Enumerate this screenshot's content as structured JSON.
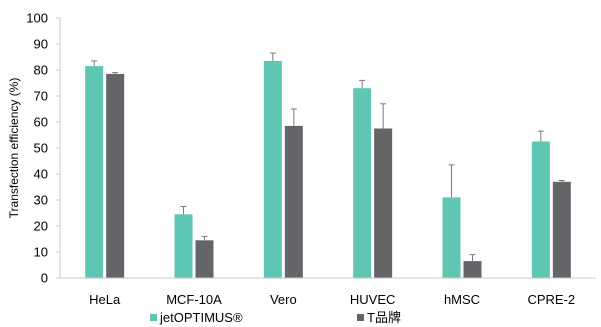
{
  "chart_data": {
    "type": "bar",
    "title": "",
    "xlabel": "",
    "ylabel": "Transfection efficiency (%)",
    "ylim": [
      0,
      100
    ],
    "yticks": [
      0,
      10,
      20,
      30,
      40,
      50,
      60,
      70,
      80,
      90,
      100
    ],
    "grid": false,
    "legend_position": "bottom",
    "categories": [
      "HeLa",
      "MCF-10A",
      "Vero",
      "HUVEC",
      "hMSC",
      "CPRE-2"
    ],
    "series": [
      {
        "name": "jetOPTIMUS®",
        "color": "#5ec6b2",
        "values": [
          81.5,
          24.5,
          83.5,
          73,
          31,
          52.5
        ],
        "errors": [
          2,
          3,
          3,
          3,
          12.5,
          4
        ]
      },
      {
        "name": "T品牌",
        "color": "#646569",
        "values": [
          78.5,
          14.5,
          58.5,
          57.5,
          6.5,
          37
        ],
        "errors": [
          0.5,
          1.5,
          6.5,
          9.5,
          2.5,
          0.5
        ]
      }
    ]
  }
}
